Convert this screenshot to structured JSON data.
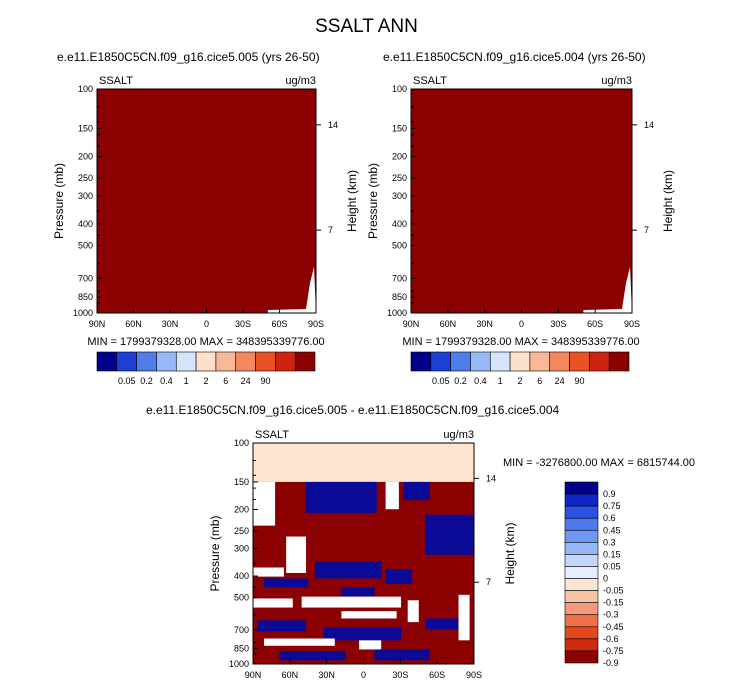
{
  "title": "SSALT ANN",
  "colors": {
    "fill_dark_red": "#8b0000",
    "fill_dark_blue": "#0a0a96",
    "fill_light": "#fde5d2",
    "cbar_abs": [
      "#00008b",
      "#1d3fd4",
      "#4f7ee8",
      "#96b8f5",
      "#d4e4fb",
      "#fde0cc",
      "#f7b896",
      "#f3875e",
      "#e95226",
      "#cc2411",
      "#8b0000"
    ],
    "cbar_diff": [
      "#00008b",
      "#0f25c8",
      "#2a52e6",
      "#4f78ee",
      "#7097f3",
      "#95b6f7",
      "#c3d6fb",
      "#e6eefd",
      "#fde6d3",
      "#f9c2a5",
      "#f59a78",
      "#ef704b",
      "#e5471f",
      "#cf2a0e",
      "#8b0000"
    ]
  },
  "chart_data": [
    {
      "type": "heatmap",
      "title": "e.e11.E1850C5CN.f09_g16.cice5.005 (yrs 26-50)",
      "variable_label": "SSALT",
      "units_label": "ug/m3",
      "ylabel": "Pressure (mb)",
      "ylabel_right": "Height (km)",
      "x_ticks": [
        "90N",
        "60N",
        "30N",
        "0",
        "30S",
        "60S",
        "90S"
      ],
      "y_ticks": [
        "100",
        "150",
        "200",
        "250",
        "300",
        "400",
        "500",
        "700",
        "850",
        "1000"
      ],
      "y_ticks_right": [
        "14",
        "7"
      ],
      "min_max_text": "MIN = 1799379328.00  MAX = 348395339776.00",
      "colorbar_labels": [
        "0.05",
        "0.2",
        "0.4",
        "1",
        "2",
        "6",
        "24",
        "90"
      ]
    },
    {
      "type": "heatmap",
      "title": "e.e11.E1850C5CN.f09_g16.cice5.004 (yrs 26-50)",
      "variable_label": "SSALT",
      "units_label": "ug/m3",
      "ylabel": "Pressure (mb)",
      "ylabel_right": "Height (km)",
      "x_ticks": [
        "90N",
        "60N",
        "30N",
        "0",
        "30S",
        "60S",
        "90S"
      ],
      "y_ticks": [
        "100",
        "150",
        "200",
        "250",
        "300",
        "400",
        "500",
        "700",
        "850",
        "1000"
      ],
      "y_ticks_right": [
        "14",
        "7"
      ],
      "min_max_text": "MIN = 1799379328.00  MAX = 348395339776.00",
      "colorbar_labels": [
        "0.05",
        "0.2",
        "0.4",
        "1",
        "2",
        "6",
        "24",
        "90"
      ]
    },
    {
      "type": "heatmap",
      "title": "e.e11.E1850C5CN.f09_g16.cice5.005 - e.e11.E1850C5CN.f09_g16.cice5.004",
      "variable_label": "SSALT",
      "units_label": "ug/m3",
      "ylabel": "Pressure (mb)",
      "ylabel_right": "Height (km)",
      "x_ticks": [
        "90N",
        "60N",
        "30N",
        "0",
        "30S",
        "60S",
        "90S"
      ],
      "y_ticks": [
        "100",
        "150",
        "200",
        "250",
        "300",
        "400",
        "500",
        "700",
        "850",
        "1000"
      ],
      "y_ticks_right": [
        "14",
        "7"
      ],
      "min_max_text": "MIN = -3276800.00  MAX = 6815744.00",
      "colorbar_labels": [
        "0.9",
        "0.75",
        "0.6",
        "0.45",
        "0.3",
        "0.15",
        "0.05",
        "0",
        "-0.05",
        "-0.15",
        "-0.3",
        "-0.45",
        "-0.6",
        "-0.75",
        "-0.9"
      ]
    }
  ]
}
